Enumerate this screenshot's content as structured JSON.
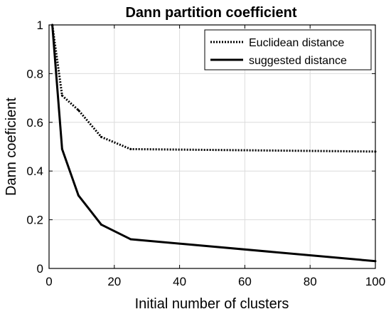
{
  "chart_data": {
    "type": "line",
    "title": "Dann partition coefficient",
    "xlabel": "Initial number of clusters",
    "ylabel": "Dann coeficient",
    "xlim": [
      0,
      100
    ],
    "ylim": [
      0,
      1
    ],
    "xticks": [
      0,
      20,
      40,
      60,
      80,
      100
    ],
    "yticks": [
      0,
      0.2,
      0.4,
      0.6,
      0.8,
      1
    ],
    "grid": true,
    "legend_position": "top-right",
    "series": [
      {
        "name": "Euclidean distance",
        "style": "dotted",
        "color": "#000000",
        "x": [
          1,
          4,
          9,
          16,
          25,
          100
        ],
        "y": [
          1.0,
          0.71,
          0.65,
          0.54,
          0.49,
          0.48
        ]
      },
      {
        "name": "suggested distance",
        "style": "solid",
        "color": "#000000",
        "x": [
          1,
          4,
          9,
          16,
          25,
          100
        ],
        "y": [
          1.0,
          0.49,
          0.3,
          0.18,
          0.12,
          0.03
        ]
      }
    ]
  }
}
